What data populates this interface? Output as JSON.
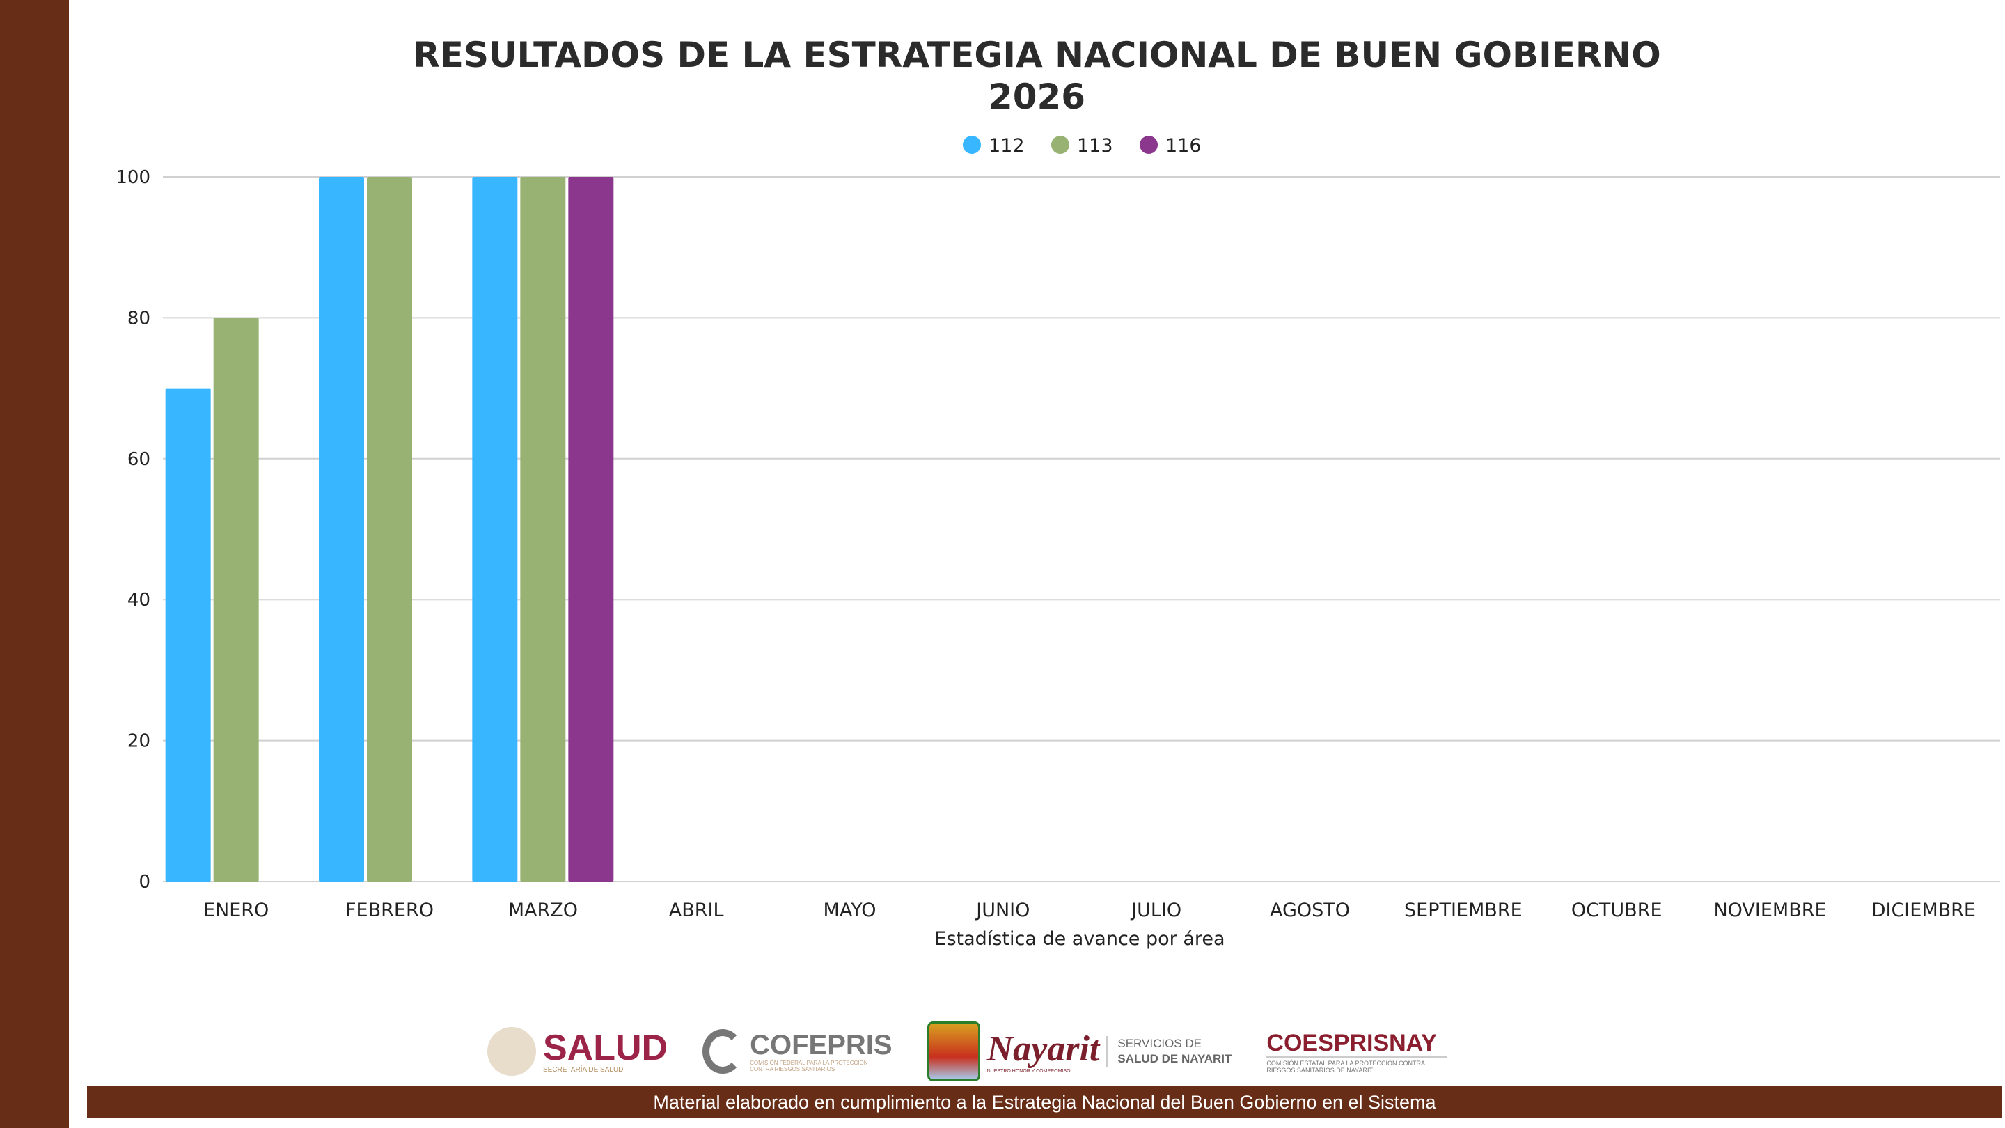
{
  "chart_data": {
    "type": "bar",
    "title": "RESULTADOS DE LA ESTRATEGIA NACIONAL DE BUEN GOBIERNO",
    "subtitle": "2026",
    "xlabel": "Estadística de avance por área",
    "ylabel": "",
    "ylim": [
      0,
      100
    ],
    "yticks": [
      0,
      20,
      40,
      60,
      80,
      100
    ],
    "grid": true,
    "legend_placement": "top",
    "categories": [
      "ENERO",
      "FEBRERO",
      "MARZO",
      "ABRIL",
      "MAYO",
      "JUNIO",
      "JULIO",
      "AGOSTO",
      "SEPTIEMBRE",
      "OCTUBRE",
      "NOVIEMBRE",
      "DICIEMBRE"
    ],
    "series": [
      {
        "name": "112",
        "color": "#38b6ff",
        "values": [
          70,
          100,
          100,
          null,
          null,
          null,
          null,
          null,
          null,
          null,
          null,
          null
        ]
      },
      {
        "name": "113",
        "color": "#97b272",
        "values": [
          80,
          100,
          100,
          null,
          null,
          null,
          null,
          null,
          null,
          null,
          null,
          null
        ]
      },
      {
        "name": "116",
        "color": "#8b378d",
        "values": [
          null,
          null,
          100,
          null,
          null,
          null,
          null,
          null,
          null,
          null,
          null,
          null
        ]
      }
    ]
  },
  "logos": {
    "salud": "SALUD",
    "salud_sub": "SECRETARÍA DE SALUD",
    "cofepris": "COFEPRIS",
    "cofepris_sub": "COMISIÓN FEDERAL PARA LA PROTECCIÓN CONTRA RIESGOS SANITARIOS",
    "nayarit": "Nayarit",
    "nayarit_sub": "NUESTRO HONOR Y COMPROMISO",
    "servicios": "SERVICIOS DE",
    "servicios2": "SALUD DE NAYARIT",
    "coesprisnay": "COESPRISNAY",
    "coesprisnay_sub": "COMISIÓN ESTATAL PARA LA PROTECCIÓN CONTRA RIESGOS SANITARIOS DE NAYARIT"
  },
  "footer": "Material elaborado en cumplimiento a la Estrategia Nacional  del Buen Gobierno en el Sistema",
  "colors": {
    "brand_brown": "#682d17",
    "salud_red": "#9d2449"
  }
}
